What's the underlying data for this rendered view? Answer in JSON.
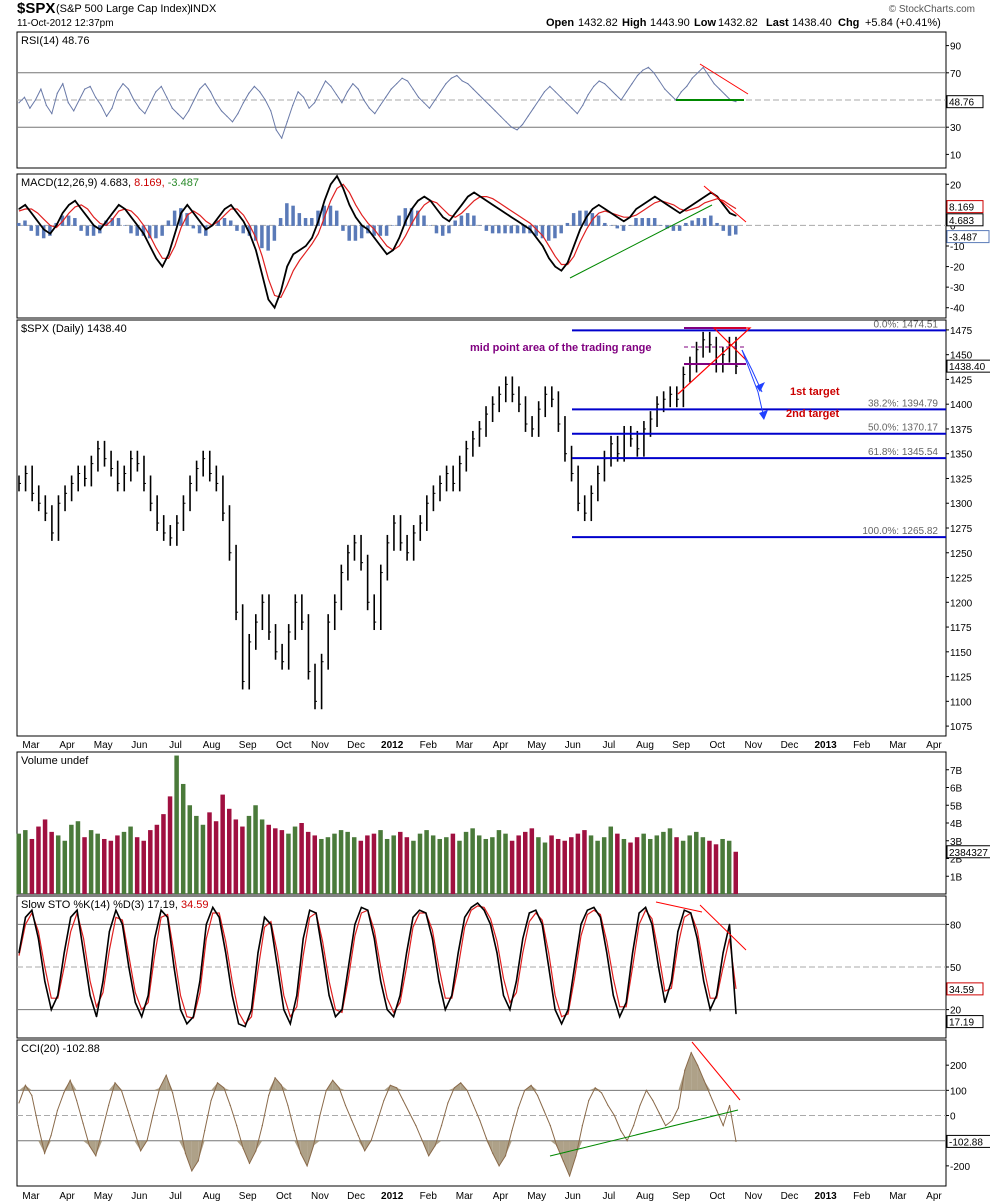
{
  "header": {
    "symbol": "$SPX",
    "name": "(S&P 500 Large Cap Index)",
    "exchange": "INDX",
    "date": "11-Oct-2012 12:37pm",
    "open_label": "Open",
    "open": "1432.82",
    "high_label": "High",
    "high": "1443.90",
    "low_label": "Low",
    "low": "1432.82",
    "last_label": "Last",
    "last": "1438.40",
    "chg_label": "Chg",
    "chg": "+5.84 (+0.41%)",
    "brand": "© StockCharts.com"
  },
  "months_top": [
    "Mar",
    "Apr",
    "May",
    "Jun",
    "Jul",
    "Aug",
    "Sep",
    "Oct",
    "Nov",
    "Dec",
    "2012",
    "Feb",
    "Mar",
    "Apr",
    "May",
    "Jun",
    "Jul",
    "Aug",
    "Sep",
    "Oct",
    "Nov",
    "Dec",
    "2013",
    "Feb",
    "Mar",
    "Apr"
  ],
  "colors": {
    "up": "#4a7a3a",
    "down": "#a01040",
    "fib": "#0000cc",
    "annot": "#ff0000",
    "purple": "#800080",
    "support": "#008800",
    "rsi": "#6a7aa8",
    "macd_hist": "#5a7ab8",
    "cci_fill": "#9a8a6a"
  },
  "chart_data": [
    {
      "type": "line",
      "title": "RSI(14) 48.76",
      "name": "RSI(14)",
      "yticks": [
        10,
        30,
        50,
        70,
        90
      ],
      "ylim": [
        0,
        100
      ],
      "last_value": "48.76",
      "series": [
        {
          "name": "RSI(14)",
          "values": [
            48,
            52,
            44,
            50,
            58,
            46,
            40,
            55,
            62,
            48,
            42,
            50,
            58,
            60,
            52,
            46,
            38,
            44,
            56,
            62,
            58,
            50,
            44,
            40,
            48,
            56,
            60,
            52,
            44,
            40,
            36,
            42,
            50,
            58,
            62,
            56,
            48,
            42,
            38,
            34,
            40,
            48,
            55,
            60,
            56,
            50,
            42,
            28,
            22,
            34,
            46,
            56,
            52,
            44,
            48,
            56,
            64,
            60,
            54,
            48,
            56,
            62,
            58,
            50,
            44,
            40,
            46,
            52,
            58,
            62,
            66,
            64,
            58,
            52,
            48,
            44,
            50,
            56,
            62,
            66,
            68,
            64,
            62,
            58,
            54,
            50,
            46,
            42,
            38,
            34,
            30,
            28,
            32,
            38,
            44,
            50,
            56,
            60,
            56,
            52,
            48,
            44,
            40,
            46,
            54,
            60,
            64,
            62,
            58,
            54,
            50,
            56,
            62,
            68,
            72,
            74,
            70,
            64,
            58,
            54,
            50,
            56,
            60,
            66,
            70,
            74,
            68,
            62,
            58,
            54,
            50,
            48.76
          ]
        }
      ]
    },
    {
      "type": "line",
      "title": "MACD(12,26,9) 4.683, 8.169, -3.487",
      "name": "MACD(12,26,9)",
      "yticks": [
        -40,
        -30,
        -20,
        -10,
        0,
        10,
        20
      ],
      "ylim": [
        -45,
        25
      ],
      "last_values": {
        "macd": "4.683",
        "signal": "8.169",
        "hist": "-3.487"
      },
      "series": [
        {
          "name": "MACD",
          "values": [
            8,
            10,
            6,
            2,
            -2,
            -4,
            0,
            6,
            10,
            12,
            8,
            4,
            0,
            -2,
            2,
            6,
            10,
            8,
            4,
            0,
            -4,
            -10,
            -16,
            -20,
            -14,
            -4,
            6,
            10,
            6,
            2,
            -2,
            0,
            4,
            8,
            10,
            6,
            2,
            -4,
            -12,
            -24,
            -36,
            -40,
            -32,
            -20,
            -14,
            -12,
            -10,
            -6,
            2,
            12,
            20,
            24,
            18,
            10,
            4,
            0,
            -2,
            -6,
            -10,
            -14,
            -12,
            -6,
            2,
            8,
            12,
            14,
            12,
            8,
            4,
            2,
            6,
            10,
            14,
            16,
            14,
            12,
            10,
            8,
            6,
            4,
            2,
            0,
            -2,
            -6,
            -10,
            -16,
            -20,
            -22,
            -18,
            -10,
            -2,
            4,
            8,
            10,
            8,
            6,
            4,
            2,
            4,
            8,
            10,
            12,
            14,
            12,
            10,
            8,
            6,
            8,
            10,
            12,
            14,
            16,
            14,
            10,
            6,
            4.683
          ]
        },
        {
          "name": "Signal",
          "values": [
            7,
            8,
            8,
            6,
            3,
            0,
            -1,
            2,
            6,
            9,
            10,
            8,
            4,
            1,
            0,
            3,
            7,
            8,
            7,
            4,
            0,
            -5,
            -11,
            -16,
            -16,
            -10,
            -1,
            5,
            7,
            5,
            2,
            0,
            2,
            5,
            8,
            8,
            5,
            0,
            -6,
            -15,
            -26,
            -34,
            -35,
            -29,
            -22,
            -17,
            -13,
            -9,
            -4,
            4,
            12,
            18,
            20,
            16,
            10,
            5,
            1,
            -2,
            -6,
            -10,
            -12,
            -10,
            -5,
            1,
            6,
            10,
            12,
            11,
            8,
            5,
            4,
            6,
            9,
            12,
            14,
            14,
            13,
            11,
            9,
            7,
            5,
            3,
            1,
            -2,
            -5,
            -10,
            -15,
            -19,
            -19,
            -15,
            -8,
            -2,
            3,
            6,
            7,
            6,
            5,
            4,
            4,
            5,
            7,
            9,
            11,
            12,
            11,
            10,
            8,
            7,
            8,
            9,
            11,
            12,
            13,
            12,
            10,
            8.169
          ]
        }
      ]
    },
    {
      "type": "bar",
      "title": "$SPX (Daily) 1438.40",
      "name": "$SPX (Daily)",
      "yticks": [
        1075,
        1100,
        1125,
        1150,
        1175,
        1200,
        1225,
        1250,
        1275,
        1300,
        1325,
        1350,
        1375,
        1400,
        1425,
        1450,
        1475
      ],
      "ylim": [
        1065,
        1485
      ],
      "last_value": "1438.40",
      "series": [
        {
          "name": "$SPX",
          "values": [
            1320,
            1330,
            1310,
            1300,
            1290,
            1270,
            1300,
            1310,
            1320,
            1330,
            1325,
            1340,
            1355,
            1345,
            1335,
            1320,
            1330,
            1345,
            1340,
            1320,
            1300,
            1280,
            1270,
            1265,
            1280,
            1300,
            1320,
            1335,
            1345,
            1330,
            1320,
            1290,
            1250,
            1190,
            1120,
            1160,
            1180,
            1200,
            1170,
            1150,
            1140,
            1170,
            1200,
            1180,
            1130,
            1100,
            1140,
            1180,
            1200,
            1230,
            1250,
            1260,
            1240,
            1200,
            1180,
            1230,
            1260,
            1280,
            1260,
            1250,
            1270,
            1280,
            1300,
            1310,
            1320,
            1330,
            1320,
            1340,
            1355,
            1365,
            1375,
            1390,
            1400,
            1410,
            1420,
            1410,
            1400,
            1380,
            1375,
            1395,
            1410,
            1405,
            1380,
            1350,
            1330,
            1300,
            1290,
            1310,
            1330,
            1345,
            1360,
            1350,
            1370,
            1365,
            1355,
            1375,
            1385,
            1400,
            1405,
            1410,
            1405,
            1430,
            1440,
            1455,
            1465,
            1460,
            1440,
            1450,
            1460,
            1438.4
          ]
        }
      ]
    },
    {
      "type": "bar",
      "title": "Volume undef",
      "name": "Volume",
      "yticks_labels": [
        "1B",
        "2B",
        "3B",
        "4B",
        "5B",
        "6B",
        "7B"
      ],
      "ylim": [
        0,
        8
      ],
      "last_value": "2384327",
      "series": [
        {
          "name": "Volume",
          "values": [
            3.4,
            3.6,
            3.1,
            3.8,
            4.2,
            3.5,
            3.3,
            3.0,
            3.9,
            4.1,
            3.2,
            3.6,
            3.4,
            3.1,
            3.0,
            3.3,
            3.5,
            3.8,
            3.2,
            3.0,
            3.6,
            3.9,
            4.5,
            5.5,
            7.8,
            6.2,
            5.0,
            4.4,
            3.9,
            4.6,
            4.1,
            5.6,
            4.8,
            4.2,
            3.8,
            4.4,
            5.0,
            4.2,
            3.9,
            3.7,
            3.6,
            3.4,
            3.8,
            4.0,
            3.5,
            3.3,
            3.1,
            3.2,
            3.4,
            3.6,
            3.5,
            3.2,
            3.0,
            3.3,
            3.4,
            3.6,
            3.1,
            3.3,
            3.5,
            3.2,
            3.0,
            3.4,
            3.6,
            3.3,
            3.1,
            3.2,
            3.4,
            3.0,
            3.5,
            3.7,
            3.3,
            3.1,
            3.2,
            3.6,
            3.4,
            3.0,
            3.3,
            3.5,
            3.7,
            3.2,
            2.9,
            3.3,
            3.1,
            3.0,
            3.2,
            3.4,
            3.6,
            3.3,
            3.0,
            3.2,
            3.8,
            3.4,
            3.1,
            2.9,
            3.2,
            3.4,
            3.1,
            3.3,
            3.5,
            3.7,
            3.2,
            3.0,
            3.3,
            3.5,
            3.2,
            3.0,
            2.8,
            3.1,
            3.0,
            2.38
          ]
        }
      ]
    },
    {
      "type": "line",
      "title": "Slow STO %K(14) %D(3) 17.19, 34.59",
      "name": "Slow STO %K(14) %D(3)",
      "yticks": [
        20,
        50,
        80
      ],
      "ylim": [
        0,
        100
      ],
      "last_values": {
        "k": "17.19",
        "d": "34.59"
      },
      "series": [
        {
          "name": "%K",
          "values": [
            60,
            85,
            90,
            70,
            40,
            20,
            30,
            60,
            85,
            90,
            60,
            30,
            15,
            40,
            75,
            90,
            80,
            50,
            25,
            15,
            30,
            70,
            90,
            85,
            50,
            20,
            10,
            15,
            40,
            80,
            92,
            85,
            60,
            30,
            10,
            8,
            20,
            60,
            85,
            80,
            50,
            20,
            10,
            30,
            70,
            90,
            88,
            60,
            30,
            15,
            20,
            50,
            80,
            92,
            90,
            70,
            40,
            20,
            15,
            30,
            60,
            85,
            90,
            88,
            70,
            40,
            20,
            30,
            60,
            85,
            92,
            95,
            90,
            80,
            60,
            30,
            20,
            40,
            70,
            88,
            90,
            80,
            50,
            20,
            10,
            20,
            50,
            80,
            90,
            92,
            85,
            60,
            30,
            15,
            25,
            60,
            88,
            92,
            80,
            50,
            25,
            40,
            75,
            90,
            88,
            70,
            40,
            20,
            30,
            60,
            80,
            17.19
          ]
        },
        {
          "name": "%D",
          "values": [
            58,
            80,
            88,
            75,
            50,
            28,
            28,
            50,
            75,
            88,
            70,
            40,
            22,
            32,
            62,
            85,
            83,
            58,
            32,
            20,
            25,
            58,
            85,
            87,
            60,
            30,
            15,
            14,
            32,
            70,
            88,
            88,
            68,
            40,
            18,
            10,
            15,
            48,
            78,
            82,
            60,
            30,
            15,
            22,
            58,
            85,
            88,
            68,
            40,
            20,
            18,
            42,
            72,
            88,
            90,
            76,
            50,
            28,
            18,
            25,
            50,
            78,
            88,
            88,
            76,
            50,
            28,
            28,
            50,
            78,
            90,
            93,
            92,
            84,
            68,
            42,
            25,
            32,
            60,
            82,
            88,
            83,
            60,
            30,
            15,
            17,
            42,
            72,
            87,
            90,
            87,
            68,
            42,
            22,
            22,
            50,
            80,
            90,
            84,
            60,
            33,
            35,
            65,
            85,
            88,
            76,
            50,
            28,
            28,
            50,
            70,
            34.59
          ]
        }
      ]
    },
    {
      "type": "area",
      "title": "CCI(20) -102.88",
      "name": "CCI(20)",
      "yticks": [
        -200,
        -100,
        0,
        100,
        200
      ],
      "ylim": [
        -280,
        300
      ],
      "last_value": "-102.88",
      "series": [
        {
          "name": "CCI(20)",
          "values": [
            50,
            120,
            80,
            -40,
            -150,
            -80,
            20,
            90,
            140,
            60,
            -30,
            -120,
            -160,
            -60,
            40,
            130,
            100,
            20,
            -60,
            -140,
            -100,
            10,
            110,
            160,
            90,
            -20,
            -150,
            -220,
            -180,
            -60,
            60,
            130,
            110,
            40,
            -40,
            -130,
            -190,
            -140,
            -40,
            80,
            150,
            120,
            40,
            -60,
            -150,
            -200,
            -120,
            0,
            100,
            140,
            110,
            40,
            -20,
            -80,
            -140,
            -100,
            -20,
            60,
            120,
            110,
            60,
            10,
            -40,
            -100,
            -160,
            -120,
            -40,
            50,
            110,
            130,
            100,
            40,
            -20,
            -90,
            -150,
            -200,
            -160,
            -60,
            30,
            100,
            120,
            80,
            20,
            -40,
            -120,
            -180,
            -240,
            -160,
            -40,
            60,
            110,
            90,
            40,
            0,
            -60,
            -100,
            -40,
            40,
            100,
            60,
            10,
            -40,
            -20,
            30,
            180,
            250,
            200,
            140,
            80,
            20,
            -40,
            40,
            -102.88
          ]
        }
      ]
    }
  ],
  "price_annotations": {
    "mid_point_label": "mid point area of the trading range",
    "first_target": "1st  target",
    "second_target": "2nd target",
    "fib_levels": [
      {
        "label": "0.0%: 1474.51",
        "value": 1474.51
      },
      {
        "label": "38.2%: 1394.79",
        "value": 1394.79
      },
      {
        "label": "50.0%: 1370.17",
        "value": 1370.17
      },
      {
        "label": "61.8%: 1345.54",
        "value": 1345.54
      },
      {
        "label": "100.0%: 1265.82",
        "value": 1265.82
      }
    ]
  }
}
